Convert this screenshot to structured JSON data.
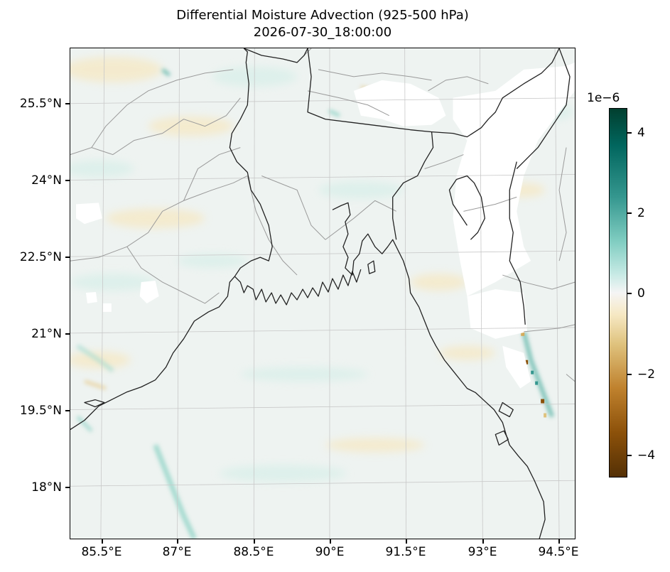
{
  "title": {
    "line1": "Differential Moisture Advection (925-500 hPa)",
    "line2": "2026-07-30_18:00:00"
  },
  "map": {
    "region": "Bay of Bengal / Bangladesh",
    "lat_ticks": [
      "25.5°N",
      "24°N",
      "22.5°N",
      "21°N",
      "19.5°N",
      "18°N"
    ],
    "lon_ticks": [
      "85.5°E",
      "87°E",
      "88.5°E",
      "90°E",
      "91.5°E",
      "93°E",
      "94.5°E"
    ],
    "lat_range": [
      17.0,
      26.6
    ],
    "lon_range": [
      84.9,
      94.9
    ],
    "gridlines": true,
    "colormap": "BrBG"
  },
  "colorbar": {
    "exponent_label": "1e−6",
    "ticks": [
      "4",
      "2",
      "0",
      "−2",
      "−4"
    ],
    "tick_values": [
      4,
      2,
      0,
      -2,
      -4
    ],
    "range": [
      -4.6,
      4.6
    ]
  },
  "colors": {
    "coastline": "#222222",
    "borders": "#999999",
    "gridline": "#c8c8c8",
    "background_field": "#eef3f1",
    "missing": "#ffffff"
  }
}
